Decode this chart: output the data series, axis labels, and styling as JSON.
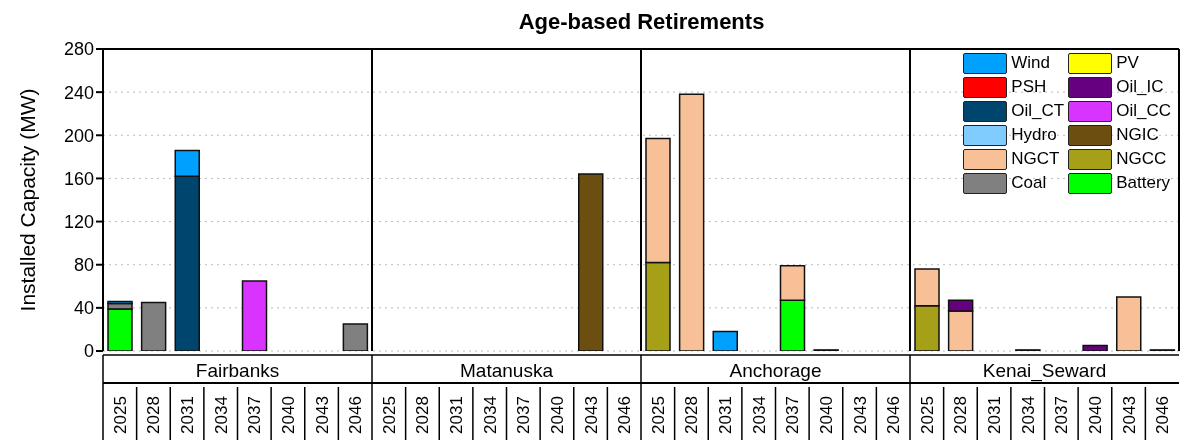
{
  "chart_data": {
    "type": "bar",
    "stacked": true,
    "title": "Age-based Retirements",
    "ylabel": "Installed Capacity (MW)",
    "categories": [
      "2025",
      "2028",
      "2031",
      "2034",
      "2037",
      "2040",
      "2043",
      "2046",
      "2025",
      "2028",
      "2031",
      "2034",
      "2037",
      "2040",
      "2043",
      "2046",
      "2025",
      "2028",
      "2031",
      "2034",
      "2037",
      "2040",
      "2043",
      "2046",
      "2025",
      "2028",
      "2031",
      "2034",
      "2037",
      "2040",
      "2043",
      "2046"
    ],
    "annotations": [
      "Fairbanks",
      "Matanuska",
      "Anchorage",
      "Kenai_Seward"
    ],
    "ylim": [
      0,
      280
    ],
    "yticks": [
      0,
      40,
      80,
      120,
      160,
      200,
      240,
      280
    ],
    "grid": "y",
    "legend": "top right",
    "series": [
      {
        "name": "Battery",
        "color": "#00ff00",
        "values": [
          39,
          null,
          null,
          null,
          null,
          null,
          null,
          null,
          null,
          null,
          null,
          null,
          null,
          null,
          null,
          null,
          null,
          null,
          null,
          null,
          47,
          null,
          null,
          null,
          null,
          null,
          null,
          null,
          null,
          null,
          null,
          null
        ]
      },
      {
        "name": "Coal",
        "color": "#808080",
        "values": [
          5,
          45,
          null,
          null,
          null,
          null,
          null,
          25,
          null,
          null,
          null,
          null,
          null,
          null,
          null,
          null,
          null,
          null,
          null,
          null,
          null,
          null,
          null,
          null,
          null,
          null,
          null,
          null,
          null,
          null,
          null,
          null
        ]
      },
      {
        "name": "NGCC",
        "color": "#a5a018",
        "values": [
          null,
          null,
          null,
          null,
          null,
          null,
          null,
          null,
          null,
          null,
          null,
          null,
          null,
          null,
          null,
          null,
          82,
          null,
          null,
          null,
          null,
          null,
          null,
          null,
          42,
          null,
          null,
          null,
          null,
          null,
          null,
          null
        ]
      },
      {
        "name": "NGCT",
        "color": "#f7c096",
        "values": [
          null,
          null,
          null,
          null,
          null,
          null,
          null,
          null,
          null,
          null,
          null,
          null,
          null,
          null,
          null,
          null,
          115,
          238,
          null,
          null,
          32,
          null,
          null,
          null,
          34,
          37,
          null,
          null,
          null,
          null,
          50,
          null
        ]
      },
      {
        "name": "NGIC",
        "color": "#6b4e10",
        "values": [
          null,
          null,
          null,
          null,
          null,
          null,
          null,
          null,
          null,
          null,
          null,
          null,
          null,
          null,
          164,
          null,
          null,
          null,
          null,
          null,
          null,
          null,
          null,
          null,
          null,
          null,
          null,
          null,
          null,
          null,
          null,
          null
        ]
      },
      {
        "name": "Hydro",
        "color": "#80ccff",
        "values": [
          null,
          null,
          null,
          null,
          null,
          null,
          null,
          null,
          null,
          null,
          null,
          null,
          null,
          null,
          null,
          null,
          null,
          null,
          null,
          null,
          null,
          null,
          null,
          null,
          null,
          null,
          null,
          null,
          null,
          null,
          null,
          null
        ]
      },
      {
        "name": "Oil_CC",
        "color": "#d833ff",
        "values": [
          null,
          null,
          null,
          null,
          65,
          null,
          null,
          null,
          null,
          null,
          null,
          null,
          null,
          null,
          null,
          null,
          null,
          null,
          null,
          null,
          null,
          null,
          null,
          null,
          null,
          null,
          null,
          null,
          null,
          null,
          null,
          null
        ]
      },
      {
        "name": "Oil_CT",
        "color": "#00456e",
        "values": [
          null,
          null,
          162,
          null,
          null,
          null,
          null,
          null,
          null,
          null,
          null,
          null,
          null,
          null,
          null,
          null,
          null,
          null,
          null,
          null,
          null,
          null,
          null,
          null,
          null,
          null,
          null,
          null,
          null,
          null,
          null,
          null
        ]
      },
      {
        "name": "Oil_IC",
        "color": "#660080",
        "values": [
          null,
          null,
          null,
          null,
          null,
          null,
          null,
          null,
          null,
          null,
          null,
          null,
          null,
          null,
          null,
          null,
          null,
          null,
          null,
          null,
          null,
          1,
          null,
          null,
          null,
          10,
          null,
          1,
          null,
          5,
          null,
          1
        ]
      },
      {
        "name": "PSH",
        "color": "#ff0000",
        "values": [
          null,
          null,
          null,
          null,
          null,
          null,
          null,
          null,
          null,
          null,
          null,
          null,
          null,
          null,
          null,
          null,
          null,
          null,
          null,
          null,
          null,
          null,
          null,
          null,
          null,
          null,
          null,
          null,
          null,
          null,
          null,
          null
        ]
      },
      {
        "name": "PV",
        "color": "#ffff00",
        "values": [
          null,
          null,
          null,
          null,
          null,
          null,
          null,
          null,
          null,
          null,
          null,
          null,
          null,
          null,
          null,
          null,
          null,
          null,
          null,
          null,
          null,
          null,
          null,
          null,
          null,
          null,
          null,
          null,
          null,
          null,
          null,
          null
        ]
      },
      {
        "name": "Wind",
        "color": "#00a0ff",
        "values": [
          2,
          null,
          24,
          null,
          null,
          null,
          null,
          null,
          null,
          null,
          null,
          null,
          null,
          null,
          null,
          null,
          null,
          null,
          18,
          null,
          null,
          null,
          null,
          null,
          null,
          null,
          null,
          null,
          null,
          null,
          null,
          null
        ]
      }
    ]
  }
}
